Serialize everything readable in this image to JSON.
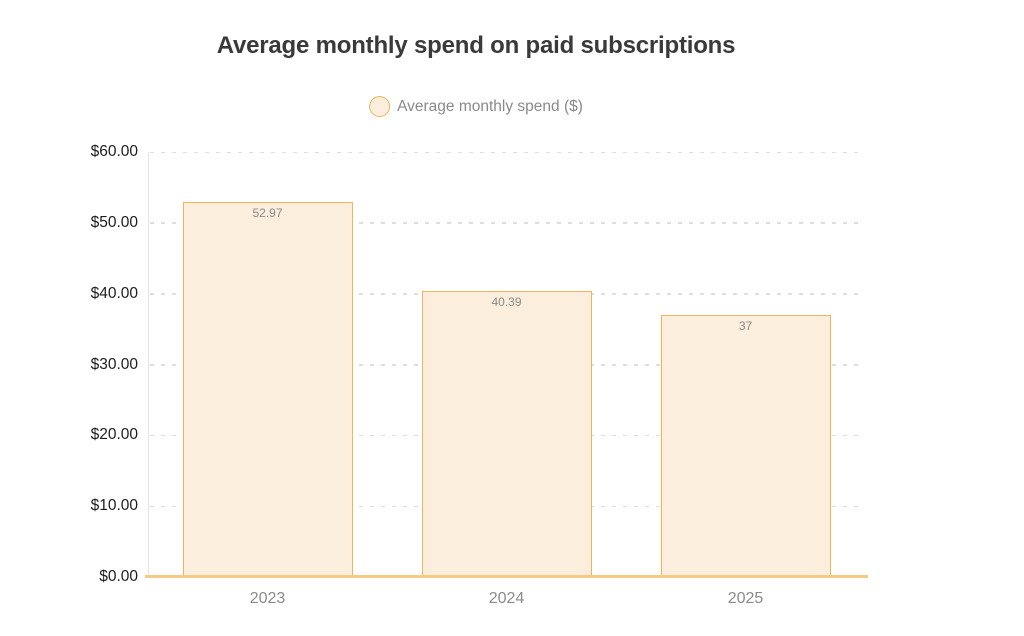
{
  "chart_data": {
    "type": "bar",
    "title": "Average monthly spend on paid subscriptions",
    "legend": {
      "label": "Average monthly spend ($)",
      "position": "top-center",
      "marker": "circle"
    },
    "categories": [
      "2023",
      "2024",
      "2025"
    ],
    "series": [
      {
        "name": "Average monthly spend ($)",
        "values": [
          52.97,
          40.39,
          37
        ],
        "value_labels": [
          "52.97",
          "40.39",
          "37"
        ]
      }
    ],
    "xlabel": "",
    "ylabel": "",
    "ylim": [
      0,
      60
    ],
    "ytick_step": 10,
    "ytick_labels": [
      "$0.00",
      "$10.00",
      "$20.00",
      "$30.00",
      "$40.00",
      "$50.00",
      "$60.00"
    ],
    "grid": "horizontal-dashed",
    "colors": {
      "bar_fill": "#fbeedc",
      "bar_border": "#f2b35d",
      "baseline": "#f7c983",
      "gridline": "#dedede",
      "axis_line": "#e4e4e4",
      "title_text": "#3a3a3a",
      "ytick_text": "#1d1d1f",
      "xtick_text": "#8a8a8a",
      "value_label_text": "#8a8a8a",
      "legend_text": "#8a8a8a"
    }
  }
}
